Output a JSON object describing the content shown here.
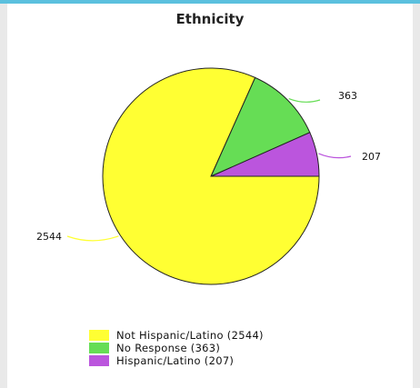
{
  "chart_data": {
    "type": "pie",
    "title": "Ethnicity",
    "slices": [
      {
        "label": "Not Hispanic/Latino",
        "value": 2544,
        "value_label": "2544",
        "legend_label": "Not Hispanic/Latino (2544)",
        "color": "#ffff33"
      },
      {
        "label": "No Response",
        "value": 363,
        "value_label": "363",
        "legend_label": "No Response (363)",
        "color": "#66dd55"
      },
      {
        "label": "Hispanic/Latino",
        "value": 207,
        "value_label": "207",
        "legend_label": "Hispanic/Latino (207)",
        "color": "#bb55dd"
      }
    ],
    "legend_position": "bottom"
  }
}
